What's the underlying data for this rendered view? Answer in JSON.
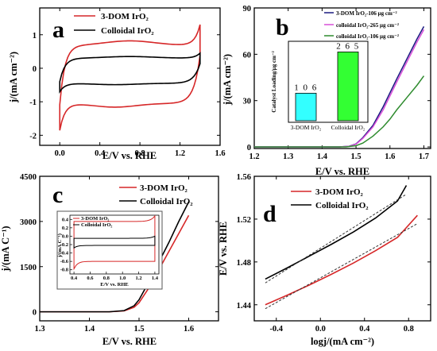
{
  "chart_data": [
    {
      "type": "line",
      "panel_letter": "a",
      "xlabel": "E/V vs. RHE",
      "ylabel": "j/(mA cm⁻²)",
      "xlim": [
        -0.2,
        1.6
      ],
      "ylim": [
        -2.3,
        1.8
      ],
      "x_ticks": [
        "0.0",
        "0.4",
        "0.8",
        "1.2",
        "1.6"
      ],
      "y_ticks": [
        "1",
        "0",
        "-1",
        "-2"
      ],
      "legend_position": "top-left",
      "series": [
        {
          "name": "3-DOM IrO₂",
          "color": "#d62728",
          "x_cv": [
            0.0,
            1.4
          ],
          "upper_peak_x": 0.65,
          "upper_level": 0.68,
          "lower_level": -1.05,
          "start_j": -1.85,
          "end_j": 1.3
        },
        {
          "name": "Colloidal IrO₂",
          "color": "#000000",
          "x_cv": [
            0.0,
            1.4
          ],
          "upper_level": 0.3,
          "lower_level": -0.45,
          "start_j": -0.7,
          "end_j": 0.45
        }
      ]
    },
    {
      "type": "line",
      "panel_letter": "b",
      "xlabel": "E/V vs. RHE",
      "ylabel": "j/(mA cm⁻²)",
      "xlim": [
        1.2,
        1.72
      ],
      "ylim": [
        -1,
        90
      ],
      "x_ticks": [
        "1.2",
        "1.3",
        "1.4",
        "1.5",
        "1.6",
        "1.7"
      ],
      "y_ticks": [
        "0",
        "30",
        "60",
        "90"
      ],
      "legend_position": "top-right",
      "series": [
        {
          "name": "3-DOM IrO₂-106 μg cm⁻²",
          "color": "#1a1a80",
          "x": [
            1.2,
            1.45,
            1.48,
            1.5,
            1.52,
            1.55,
            1.58,
            1.6,
            1.62,
            1.65,
            1.68,
            1.7
          ],
          "y": [
            0,
            0,
            0.5,
            2,
            6,
            14,
            26,
            35,
            44,
            57,
            70,
            78
          ]
        },
        {
          "name": "colloidal IrO₂-265 μg cm⁻²",
          "color": "#d94fd9",
          "x": [
            1.2,
            1.45,
            1.48,
            1.5,
            1.52,
            1.55,
            1.58,
            1.6,
            1.62,
            1.65,
            1.68,
            1.7
          ],
          "y": [
            0,
            0,
            0.4,
            1.8,
            5.5,
            13,
            24,
            33,
            42,
            55,
            68,
            76
          ]
        },
        {
          "name": "colloidal IrO₂-106 μg cm⁻²",
          "color": "#2e8b2e",
          "x": [
            1.2,
            1.47,
            1.5,
            1.52,
            1.55,
            1.58,
            1.6,
            1.62,
            1.65,
            1.68,
            1.7
          ],
          "y": [
            0,
            0,
            0.8,
            2.5,
            7,
            13,
            18,
            24,
            32,
            40,
            46
          ]
        }
      ],
      "inset": {
        "type": "bar",
        "ylabel": "Catalyst Loading/μg cm⁻²",
        "categories": [
          "3-DOM IrO₂",
          "Colloidal IrO₂"
        ],
        "values": [
          106,
          265
        ],
        "value_labels": [
          "1 0 6",
          "2 6 5"
        ],
        "colors": [
          "#33ffff",
          "#33ff33"
        ],
        "ylim": [
          0,
          300
        ]
      }
    },
    {
      "type": "line",
      "panel_letter": "c",
      "xlabel": "E/V vs. RHE",
      "ylabel": "j/(mA C⁻¹)",
      "xlim": [
        1.3,
        1.66
      ],
      "ylim": [
        -300,
        4500
      ],
      "x_ticks": [
        "1.3",
        "1.4",
        "1.5",
        "1.6"
      ],
      "y_ticks": [
        "0",
        "1500",
        "3000",
        "4500"
      ],
      "legend_position": "top-right",
      "series": [
        {
          "name": "3-DOM IrO₂",
          "color": "#d62728",
          "x": [
            1.3,
            1.44,
            1.47,
            1.49,
            1.5,
            1.52,
            1.54,
            1.56,
            1.58,
            1.6
          ],
          "y": [
            0,
            0,
            30,
            150,
            300,
            800,
            1400,
            2000,
            2600,
            3200
          ]
        },
        {
          "name": "Colloidal IrO₂",
          "color": "#000000",
          "x": [
            1.3,
            1.44,
            1.47,
            1.49,
            1.5,
            1.52,
            1.54,
            1.56,
            1.58,
            1.6
          ],
          "y": [
            0,
            0,
            40,
            200,
            400,
            1000,
            1650,
            2300,
            3000,
            3650
          ]
        }
      ],
      "inset": {
        "type": "line",
        "xlabel": "E/V vs. RHE",
        "ylabel": "j/(mA C⁻¹)",
        "x_ticks": [
          "0.4",
          "0.6",
          "0.8",
          "1.0",
          "1.2",
          "1.4"
        ],
        "y_ticks": [
          "0.4",
          "0.2",
          "0.0",
          "-0.2",
          "-0.4",
          "-0.6",
          "-0.8"
        ],
        "legend": [
          "3-DOM IrO₂",
          "Colloidal IrO₂"
        ]
      }
    },
    {
      "type": "line",
      "panel_letter": "d",
      "xlabel": "logj/(mA cm⁻²)",
      "ylabel": "E/V vs. RHE",
      "xlim": [
        -0.6,
        1.0
      ],
      "ylim": [
        1.425,
        1.56
      ],
      "x_ticks": [
        "-0.4",
        "0.0",
        "0.4",
        "0.8"
      ],
      "y_ticks": [
        "1.44",
        "1.48",
        "1.52",
        "1.56"
      ],
      "legend_position": "top-left",
      "series": [
        {
          "name": "3-DOM IrO₂",
          "color": "#d62728",
          "x": [
            -0.5,
            -0.3,
            -0.1,
            0.1,
            0.3,
            0.5,
            0.7,
            0.88
          ],
          "y": [
            1.44,
            1.449,
            1.4585,
            1.4685,
            1.479,
            1.4905,
            1.503,
            1.5235
          ]
        },
        {
          "name": "Colloidal IrO₂",
          "color": "#000000",
          "x": [
            -0.5,
            -0.3,
            -0.1,
            0.1,
            0.3,
            0.5,
            0.7,
            0.78
          ],
          "y": [
            1.464,
            1.4745,
            1.4855,
            1.4965,
            1.508,
            1.521,
            1.537,
            1.5515
          ]
        }
      ]
    }
  ]
}
